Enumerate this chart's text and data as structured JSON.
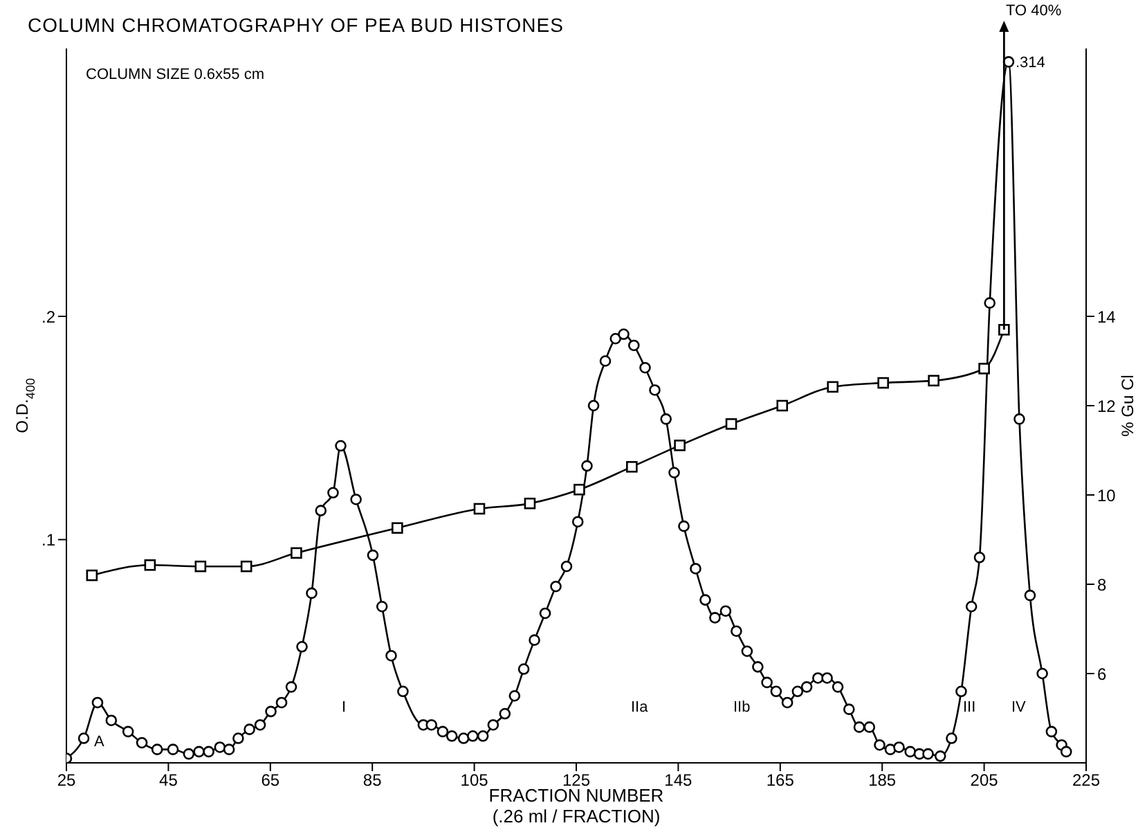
{
  "chart_data": {
    "type": "line",
    "title": "COLUMN CHROMATOGRAPHY OF PEA BUD HISTONES",
    "xlabel": "FRACTION NUMBER\n(.26 ml / FRACTION)",
    "ylabel": "O.D.$_{400}$",
    "y2label": "% Gu Cl",
    "xlim": [
      25,
      225
    ],
    "xticks": [
      25,
      45,
      65,
      85,
      105,
      125,
      145,
      165,
      185,
      205,
      225
    ],
    "ylim": [
      0,
      0.32
    ],
    "yticks": [
      {
        "value": 0.1,
        "label": ".1"
      },
      {
        "value": 0.2,
        "label": ".2"
      }
    ],
    "y2lim": [
      4,
      20
    ],
    "y2ticks": [
      6,
      8,
      10,
      12,
      14
    ],
    "grid": false,
    "line_style": "solid",
    "series": [
      {
        "type": "line",
        "marker": "circle",
        "color": "#000000",
        "x": [
          25,
          28.4,
          31.1,
          33.8,
          37.1,
          39.8,
          42.8,
          45.9,
          49,
          51,
          52.9,
          55.1,
          56.9,
          58.7,
          60.9,
          63,
          65.1,
          67.2,
          69.1,
          71.2,
          73.1,
          74.9,
          77.3,
          78.8,
          81.8,
          85.1,
          86.9,
          88.7,
          91,
          95,
          96.6,
          98.8,
          100.6,
          102.9,
          104.7,
          106.7,
          108.7,
          111,
          112.9,
          114.7,
          116.8,
          118.9,
          121,
          123.1,
          125.3,
          127.1,
          128.4,
          130.7,
          132.7,
          134.3,
          136.3,
          138.5,
          140.4,
          142.6,
          144.2,
          146.1,
          148.4,
          150.3,
          152.2,
          154.3,
          156.4,
          158.5,
          160.6,
          162.4,
          164.2,
          166.4,
          168.4,
          170.2,
          172.4,
          174.2,
          176.3,
          178.5,
          180.5,
          182.5,
          184.5,
          186.6,
          188.3,
          190.5,
          192.3,
          194,
          196.4,
          198.6,
          200.5,
          202.5,
          204.1,
          206.1,
          209.8,
          211.9,
          214,
          216.4,
          218.2,
          220.2,
          221.1
        ],
        "values": [
          0.002,
          0.011,
          0.027,
          0.019,
          0.014,
          0.009,
          0.006,
          0.006,
          0.004,
          0.005,
          0.005,
          0.007,
          0.006,
          0.011,
          0.015,
          0.017,
          0.023,
          0.027,
          0.034,
          0.052,
          0.076,
          0.113,
          0.121,
          0.142,
          0.118,
          0.093,
          0.07,
          0.048,
          0.032,
          0.017,
          0.017,
          0.014,
          0.012,
          0.011,
          0.012,
          0.012,
          0.017,
          0.022,
          0.03,
          0.042,
          0.055,
          0.067,
          0.079,
          0.088,
          0.108,
          0.133,
          0.16,
          0.18,
          0.19,
          0.192,
          0.187,
          0.177,
          0.167,
          0.154,
          0.13,
          0.106,
          0.087,
          0.073,
          0.065,
          0.068,
          0.059,
          0.05,
          0.043,
          0.036,
          0.032,
          0.027,
          0.032,
          0.034,
          0.038,
          0.038,
          0.034,
          0.024,
          0.016,
          0.016,
          0.008,
          0.006,
          0.007,
          0.005,
          0.004,
          0.004,
          0.003,
          0.011,
          0.032,
          0.07,
          0.092,
          0.206,
          0.314,
          0.154,
          0.075,
          0.04,
          0.014,
          0.008,
          0.005
        ]
      },
      {
        "type": "line",
        "marker": "square",
        "color": "#000000",
        "axis": "y2",
        "x": [
          30,
          41.4,
          51.3,
          60.3,
          70.1,
          89.9,
          106,
          115.9,
          125.6,
          135.9,
          145.3,
          155.4,
          165.4,
          175.3,
          185.2,
          195.1,
          205,
          208.9
        ],
        "values": [
          8.2,
          8.43,
          8.4,
          8.4,
          8.7,
          9.26,
          9.69,
          9.81,
          10.12,
          10.63,
          11.11,
          11.59,
          12,
          12.42,
          12.51,
          12.56,
          12.83,
          13.7
        ]
      }
    ],
    "annotations": [
      "COLUMN SIZE 0.6x55 cm",
      "TO 40%",
      {
        "text": ".314",
        "x": 209.8,
        "y": 0.314
      },
      "A",
      "I",
      "IIa",
      "IIb",
      "III",
      "IV"
    ]
  }
}
